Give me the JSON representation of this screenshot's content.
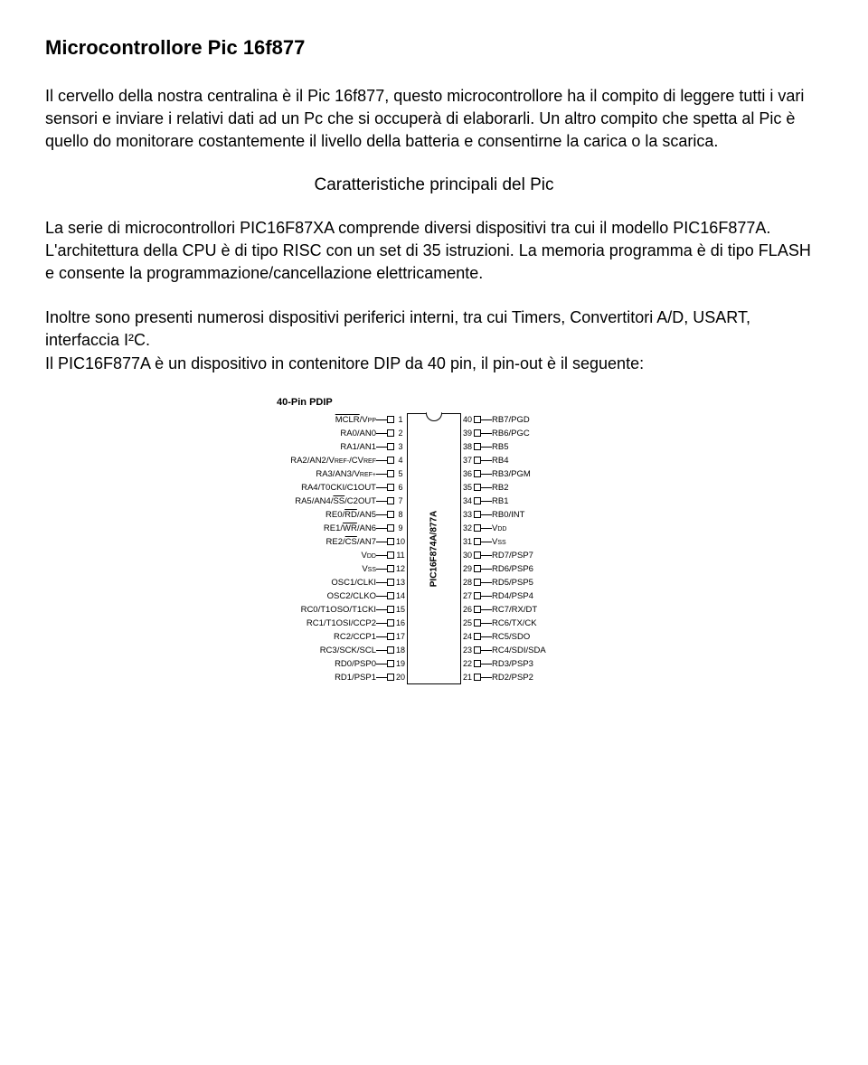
{
  "title": "Microcontrollore Pic 16f877",
  "para1": "Il cervello della nostra centralina è il Pic 16f877, questo microcontrollore ha il compito di leggere tutti i vari sensori e inviare i relativi dati ad un Pc che si occuperà di elaborarli. Un altro compito che spetta al Pic è quello do monitorare costantemente il livello della batteria e consentirne la carica o la scarica.",
  "subtitle": "Caratteristiche principali del Pic",
  "para2": "La serie di microcontrollori PIC16F87XA comprende diversi dispositivi tra cui il modello PIC16F877A. L'architettura della CPU è di tipo RISC con un set di 35 istruzioni. La memoria programma è di tipo FLASH e consente la programmazione/cancellazione elettricamente.",
  "para3": "Inoltre sono presenti numerosi dispositivi periferici interni, tra cui Timers, Convertitori A/D, USART, interfaccia I²C.",
  "para4": "Il PIC16F877A è un dispositivo in contenitore DIP da 40 pin, il pin-out è il seguente:",
  "diagram": {
    "header": "40-Pin PDIP",
    "chip_label": "PIC16F874A/877A",
    "left_pins": [
      {
        "n": 1,
        "parts": [
          {
            "t": "MCLR",
            "o": true
          },
          {
            "t": "/V"
          },
          {
            "t": "PP",
            "small": true
          }
        ]
      },
      {
        "n": 2,
        "parts": [
          {
            "t": "RA0/AN0"
          }
        ]
      },
      {
        "n": 3,
        "parts": [
          {
            "t": "RA1/AN1"
          }
        ]
      },
      {
        "n": 4,
        "parts": [
          {
            "t": "RA2/AN2/V"
          },
          {
            "t": "REF-",
            "small": true
          },
          {
            "t": "/CV"
          },
          {
            "t": "REF",
            "small": true
          }
        ]
      },
      {
        "n": 5,
        "parts": [
          {
            "t": "RA3/AN3/V"
          },
          {
            "t": "REF+",
            "small": true
          }
        ]
      },
      {
        "n": 6,
        "parts": [
          {
            "t": "RA4/T0CKI/C1OUT"
          }
        ]
      },
      {
        "n": 7,
        "parts": [
          {
            "t": "RA5/AN4/"
          },
          {
            "t": "SS",
            "o": true
          },
          {
            "t": "/C2OUT"
          }
        ]
      },
      {
        "n": 8,
        "parts": [
          {
            "t": "RE0/"
          },
          {
            "t": "RD",
            "o": true
          },
          {
            "t": "/AN5"
          }
        ]
      },
      {
        "n": 9,
        "parts": [
          {
            "t": "RE1/"
          },
          {
            "t": "WR",
            "o": true
          },
          {
            "t": "/AN6"
          }
        ]
      },
      {
        "n": 10,
        "parts": [
          {
            "t": "RE2/"
          },
          {
            "t": "CS",
            "o": true
          },
          {
            "t": "/AN7"
          }
        ]
      },
      {
        "n": 11,
        "parts": [
          {
            "t": "V"
          },
          {
            "t": "DD",
            "small": true
          }
        ]
      },
      {
        "n": 12,
        "parts": [
          {
            "t": "V"
          },
          {
            "t": "SS",
            "small": true
          }
        ]
      },
      {
        "n": 13,
        "parts": [
          {
            "t": "OSC1/CLKI"
          }
        ]
      },
      {
        "n": 14,
        "parts": [
          {
            "t": "OSC2/CLKO"
          }
        ]
      },
      {
        "n": 15,
        "parts": [
          {
            "t": "RC0/T1OSO/T1CKI"
          }
        ]
      },
      {
        "n": 16,
        "parts": [
          {
            "t": "RC1/T1OSI/CCP2"
          }
        ]
      },
      {
        "n": 17,
        "parts": [
          {
            "t": "RC2/CCP1"
          }
        ]
      },
      {
        "n": 18,
        "parts": [
          {
            "t": "RC3/SCK/SCL"
          }
        ]
      },
      {
        "n": 19,
        "parts": [
          {
            "t": "RD0/PSP0"
          }
        ]
      },
      {
        "n": 20,
        "parts": [
          {
            "t": "RD1/PSP1"
          }
        ]
      }
    ],
    "right_pins": [
      {
        "n": 40,
        "parts": [
          {
            "t": "RB7/PGD"
          }
        ]
      },
      {
        "n": 39,
        "parts": [
          {
            "t": "RB6/PGC"
          }
        ]
      },
      {
        "n": 38,
        "parts": [
          {
            "t": "RB5"
          }
        ]
      },
      {
        "n": 37,
        "parts": [
          {
            "t": "RB4"
          }
        ]
      },
      {
        "n": 36,
        "parts": [
          {
            "t": "RB3/PGM"
          }
        ]
      },
      {
        "n": 35,
        "parts": [
          {
            "t": "RB2"
          }
        ]
      },
      {
        "n": 34,
        "parts": [
          {
            "t": "RB1"
          }
        ]
      },
      {
        "n": 33,
        "parts": [
          {
            "t": "RB0/INT"
          }
        ]
      },
      {
        "n": 32,
        "parts": [
          {
            "t": "V"
          },
          {
            "t": "DD",
            "small": true
          }
        ]
      },
      {
        "n": 31,
        "parts": [
          {
            "t": "V"
          },
          {
            "t": "SS",
            "small": true
          }
        ]
      },
      {
        "n": 30,
        "parts": [
          {
            "t": "RD7/PSP7"
          }
        ]
      },
      {
        "n": 29,
        "parts": [
          {
            "t": "RD6/PSP6"
          }
        ]
      },
      {
        "n": 28,
        "parts": [
          {
            "t": "RD5/PSP5"
          }
        ]
      },
      {
        "n": 27,
        "parts": [
          {
            "t": "RD4/PSP4"
          }
        ]
      },
      {
        "n": 26,
        "parts": [
          {
            "t": "RC7/RX/DT"
          }
        ]
      },
      {
        "n": 25,
        "parts": [
          {
            "t": "RC6/TX/CK"
          }
        ]
      },
      {
        "n": 24,
        "parts": [
          {
            "t": "RC5/SDO"
          }
        ]
      },
      {
        "n": 23,
        "parts": [
          {
            "t": "RC4/SDI/SDA"
          }
        ]
      },
      {
        "n": 22,
        "parts": [
          {
            "t": "RD3/PSP3"
          }
        ]
      },
      {
        "n": 21,
        "parts": [
          {
            "t": "RD2/PSP2"
          }
        ]
      }
    ]
  }
}
